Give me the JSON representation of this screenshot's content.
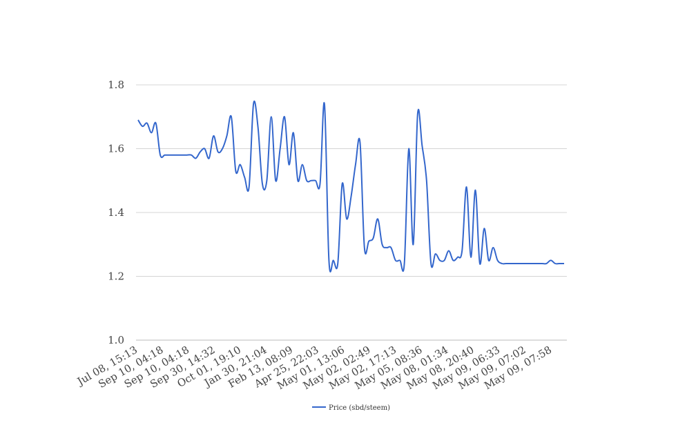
{
  "chart_data": {
    "type": "line",
    "title": "",
    "xlabel": "",
    "ylabel": "",
    "ylim": [
      1.0,
      1.8
    ],
    "yticks": [
      "1.0",
      "1.2",
      "1.4",
      "1.6",
      "1.8"
    ],
    "grid": true,
    "legend_position": "bottom",
    "x_tick_labels": [
      "Jul 08, 15:13",
      "Sep 10, 04:18",
      "Sep 10, 04:18",
      "Sep 30, 14:32",
      "Oct 01, 19:10",
      "Jan 30, 21:04",
      "Feb 13, 08:09",
      "Apr 25, 22:03",
      "May 01, 13:06",
      "May 02, 02:49",
      "May 02, 17:13",
      "May 05, 08:36",
      "May 08, 01:34",
      "May 08, 20:40",
      "May 09, 06:33",
      "May 09, 07:02",
      "May 09, 07:58"
    ],
    "series": [
      {
        "name": "Price (sbd/steem)",
        "color": "#3366cc",
        "values": [
          1.69,
          1.67,
          1.68,
          1.65,
          1.68,
          1.58,
          1.58,
          1.58,
          1.58,
          1.58,
          1.58,
          1.58,
          1.58,
          1.57,
          1.59,
          1.6,
          1.57,
          1.64,
          1.59,
          1.6,
          1.64,
          1.7,
          1.53,
          1.55,
          1.51,
          1.48,
          1.74,
          1.67,
          1.49,
          1.5,
          1.7,
          1.5,
          1.6,
          1.7,
          1.55,
          1.65,
          1.5,
          1.55,
          1.5,
          1.5,
          1.5,
          1.49,
          1.74,
          1.25,
          1.25,
          1.24,
          1.49,
          1.38,
          1.45,
          1.55,
          1.62,
          1.29,
          1.31,
          1.32,
          1.38,
          1.3,
          1.29,
          1.29,
          1.25,
          1.25,
          1.24,
          1.6,
          1.3,
          1.71,
          1.61,
          1.5,
          1.24,
          1.27,
          1.25,
          1.25,
          1.28,
          1.25,
          1.26,
          1.28,
          1.48,
          1.26,
          1.47,
          1.24,
          1.35,
          1.25,
          1.29,
          1.25,
          1.24,
          1.24,
          1.24,
          1.24,
          1.24,
          1.24,
          1.24,
          1.24,
          1.24,
          1.24,
          1.24,
          1.25,
          1.24,
          1.24,
          1.24
        ]
      }
    ]
  }
}
